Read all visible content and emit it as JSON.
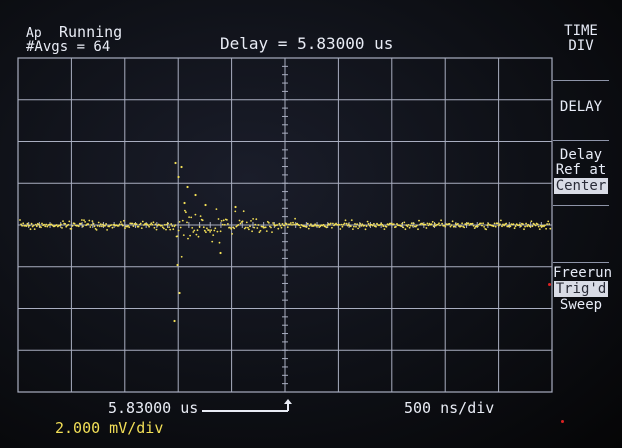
{
  "status": {
    "mode_icon": "Ap",
    "run_state": "Running",
    "averages": "#Avgs = 64"
  },
  "header": {
    "delay_readout": "Delay =  5.83000 us"
  },
  "softkeys": [
    {
      "line1": "TIME",
      "line2": "DIV"
    },
    {
      "line1": "DELAY"
    },
    {
      "line1": "Delay",
      "line2": "Ref at",
      "line3": "Center"
    },
    {
      "line1": "Freerun",
      "line2": "Trig'd",
      "line3": "Sweep"
    }
  ],
  "footer": {
    "delay_position": "5.83000 us",
    "timebase": "500  ns/div",
    "vertical_scale": "2.000 mV/div"
  },
  "trace": {
    "color": "#f2df57",
    "baseline_division": 0,
    "noise_spike_time_div": -2.05
  },
  "colors": {
    "graticule": "#a9aec0",
    "text": "#e9ecf5",
    "channel": "#f2df57"
  },
  "chart_data": {
    "type": "scatter",
    "xlabel": "500 ns/div",
    "ylabel": "2.000 mV/div",
    "x_divisions": 10,
    "y_divisions": 8,
    "baseline": 0
  }
}
